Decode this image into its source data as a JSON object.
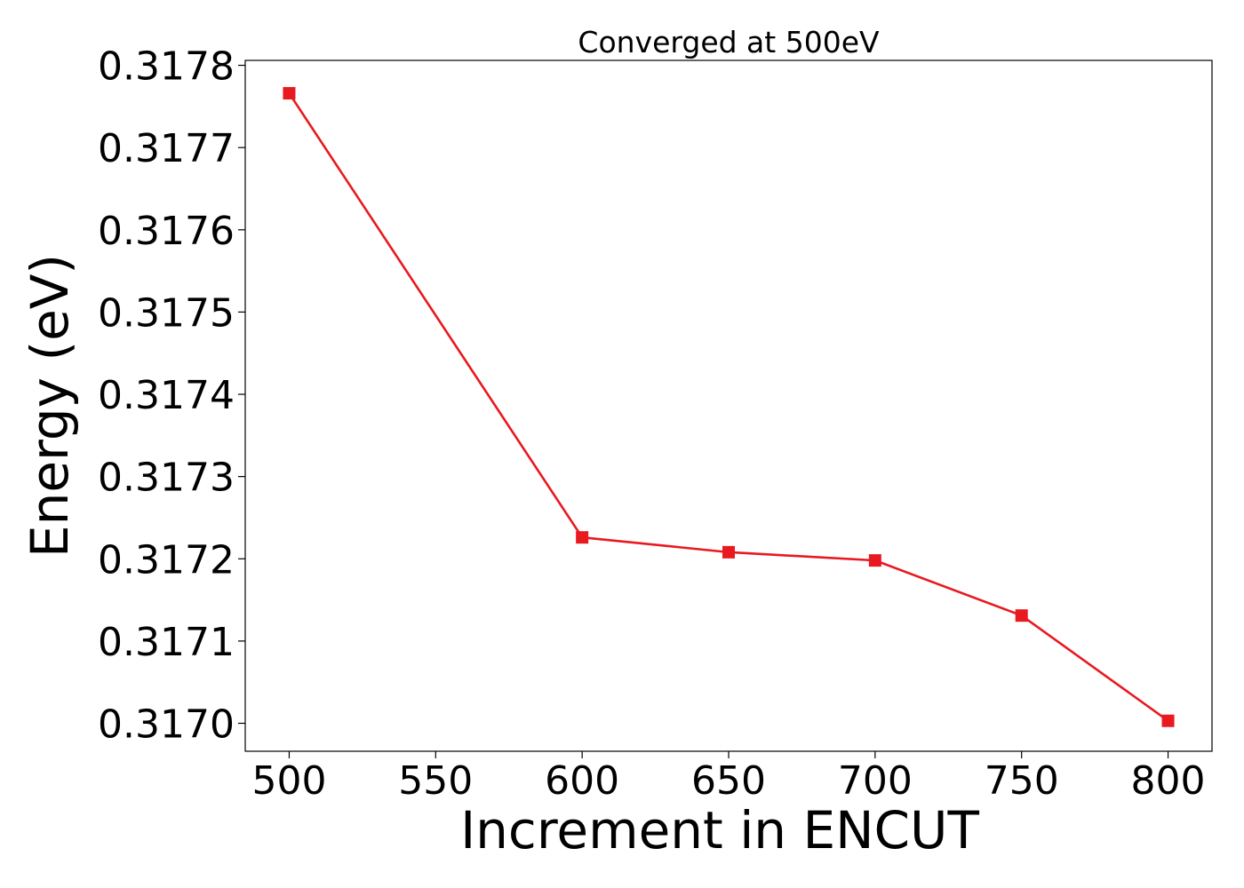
{
  "chart_data": {
    "type": "line",
    "title": "Converged at 500eV",
    "xlabel": "Increment in ENCUT",
    "ylabel": "Energy (eV)",
    "x": [
      500,
      600,
      650,
      700,
      750,
      800
    ],
    "series": [
      {
        "values": [
          0.317766,
          0.317226,
          0.317208,
          0.317198,
          0.317131,
          0.317003
        ],
        "color": "#e8191f",
        "marker": "square"
      }
    ],
    "xlim": [
      485,
      815
    ],
    "ylim": [
      0.316966,
      0.317806
    ],
    "x_ticks": [
      500,
      550,
      600,
      650,
      700,
      750,
      800
    ],
    "x_tick_labels": [
      "500",
      "550",
      "600",
      "650",
      "700",
      "750",
      "800"
    ],
    "y_ticks": [
      0.317,
      0.3171,
      0.3172,
      0.3173,
      0.3174,
      0.3175,
      0.3176,
      0.3177,
      0.3178
    ],
    "y_tick_labels": [
      "0.3170",
      "0.3171",
      "0.3172",
      "0.3173",
      "0.3174",
      "0.3175",
      "0.3176",
      "0.3177",
      "0.3178"
    ],
    "grid": false,
    "legend": "none"
  }
}
